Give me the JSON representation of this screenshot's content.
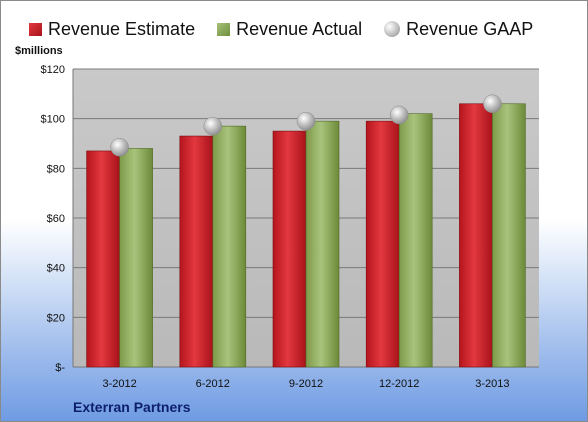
{
  "chart_data": {
    "type": "bar",
    "categories": [
      "3-2012",
      "6-2012",
      "9-2012",
      "12-2012",
      "3-2013"
    ],
    "series": [
      {
        "name": "Revenue Estimate",
        "kind": "bar",
        "color": "#c81e27",
        "values": [
          87,
          93,
          95,
          99,
          106
        ]
      },
      {
        "name": "Revenue Actual",
        "kind": "bar",
        "color": "#8aa85a",
        "values": [
          88,
          97,
          99,
          102,
          106
        ]
      },
      {
        "name": "Revenue GAAP",
        "kind": "marker",
        "color": "#b9b9b9",
        "values": [
          88.5,
          97,
          99,
          101.5,
          106
        ]
      }
    ],
    "ylabel": "$millions",
    "ylim": [
      0,
      120
    ],
    "yticks": [
      0,
      20,
      40,
      60,
      80,
      100,
      120
    ],
    "ytick_labels": [
      "$-",
      "$20",
      "$40",
      "$60",
      "$80",
      "$100",
      "$120"
    ],
    "grid": true,
    "legend": "top",
    "plot_background": "#c6c6c6"
  },
  "company": "Exterran Partners"
}
